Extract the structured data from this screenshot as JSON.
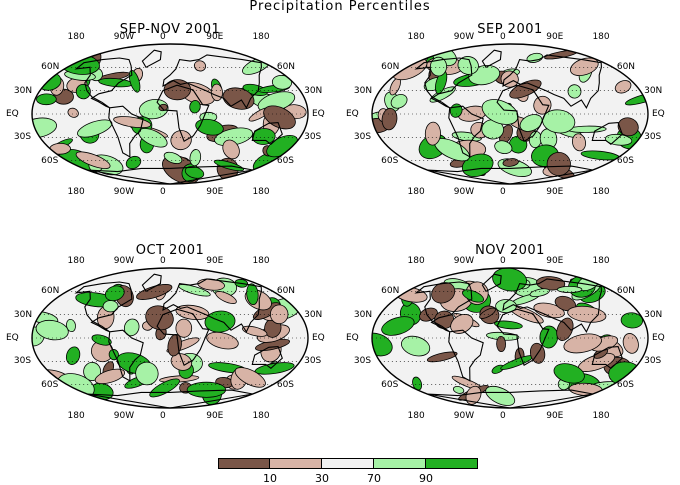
{
  "title": "Precipitation Percentiles",
  "panels": [
    {
      "title": "SEP-NOV 2001"
    },
    {
      "title": "SEP 2001"
    },
    {
      "title": "OCT 2001"
    },
    {
      "title": "NOV 2001"
    }
  ],
  "lon_labels": [
    "180",
    "90W",
    "0",
    "90E",
    "180"
  ],
  "lat_labels_left": [
    "60N",
    "30N",
    "EQ",
    "30S",
    "60S"
  ],
  "lat_labels_right": [
    "60N",
    "30N",
    "EQ",
    "30S",
    "60S"
  ],
  "legend": {
    "categories": [
      {
        "range": "<10",
        "color": "#7a5648"
      },
      {
        "range": "10-30",
        "color": "#d7b3a6"
      },
      {
        "range": "30-70",
        "color": "#f2f2f2"
      },
      {
        "range": "70-90",
        "color": "#a6f2a6"
      },
      {
        "range": ">90",
        "color": "#22b022"
      }
    ],
    "ticks": [
      "10",
      "30",
      "70",
      "90"
    ]
  },
  "colors": {
    "very_dry": "#7a5648",
    "dry": "#d7b3a6",
    "normal": "#f2f2f2",
    "wet": "#a6f2a6",
    "very_wet": "#22b022"
  }
}
